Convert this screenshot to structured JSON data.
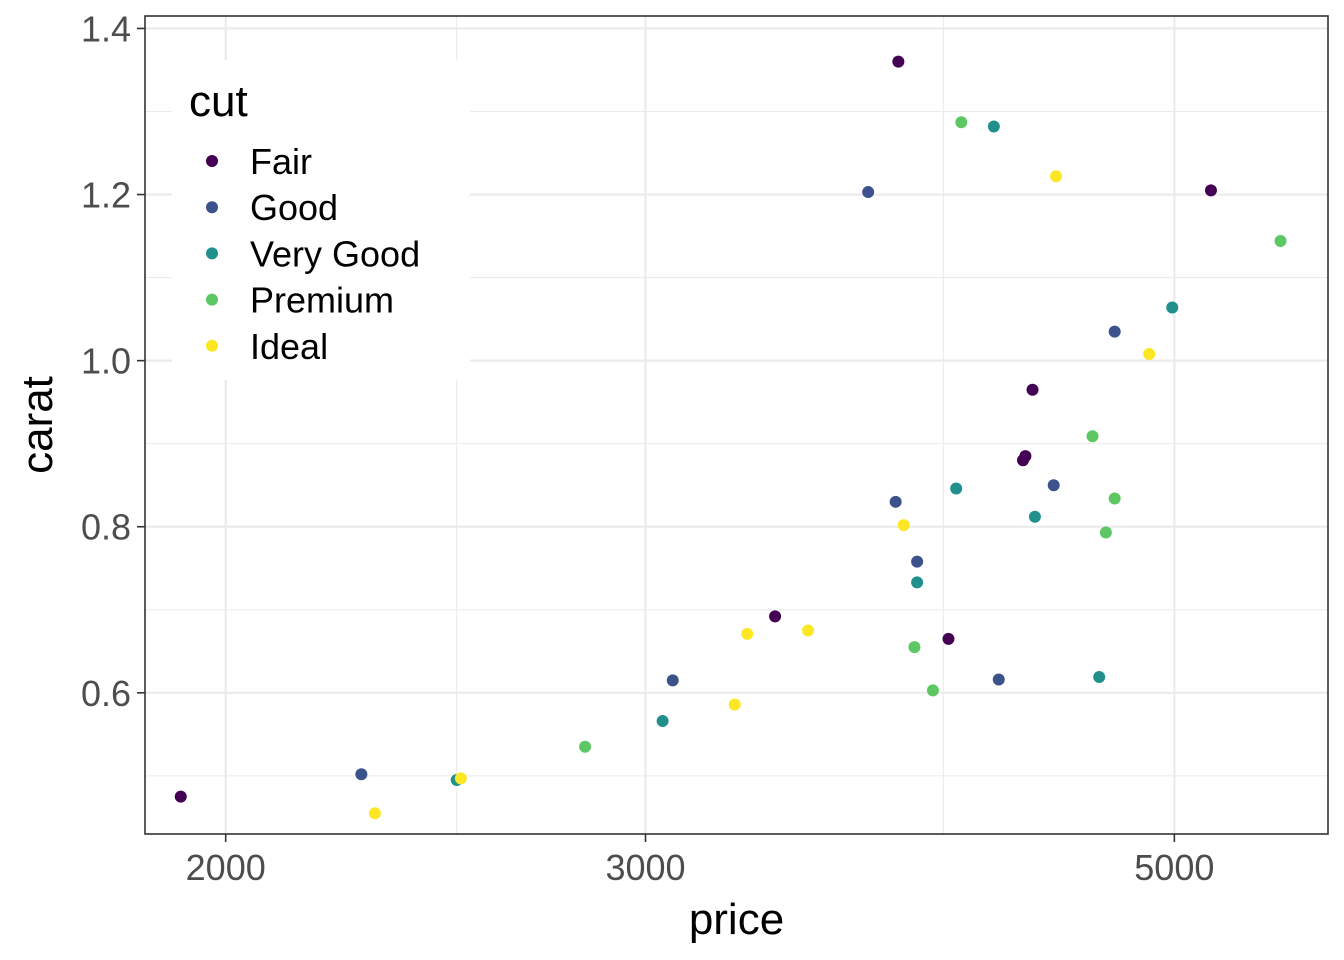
{
  "chart_data": {
    "type": "scatter",
    "xlabel": "price",
    "ylabel": "carat",
    "x_scale": "log10",
    "xlim": [
      1850,
      5800
    ],
    "ylim": [
      0.43,
      1.415
    ],
    "x_ticks": [
      2000,
      3000,
      5000
    ],
    "x_tick_labels": [
      "2000",
      "3000",
      "5000"
    ],
    "x_minor_ticks": [
      2500,
      4000
    ],
    "y_ticks": [
      0.6,
      0.8,
      1.0,
      1.2,
      1.4
    ],
    "y_tick_labels": [
      "0.6",
      "0.8",
      "1.0",
      "1.2",
      "1.4"
    ],
    "y_minor_ticks": [
      0.5,
      0.7,
      0.9,
      1.1,
      1.3
    ],
    "grid": true,
    "legend": {
      "title": "cut",
      "placement": "top-left"
    },
    "series": [
      {
        "name": "Fair",
        "color": "#440154",
        "points": [
          {
            "x": 1915,
            "y": 0.475
          },
          {
            "x": 3400,
            "y": 0.692
          },
          {
            "x": 3830,
            "y": 1.36
          },
          {
            "x": 4020,
            "y": 0.665
          },
          {
            "x": 4320,
            "y": 0.88
          },
          {
            "x": 4330,
            "y": 0.885
          },
          {
            "x": 4360,
            "y": 0.965
          },
          {
            "x": 5180,
            "y": 1.205
          }
        ]
      },
      {
        "name": "Good",
        "color": "#3b528b",
        "points": [
          {
            "x": 2280,
            "y": 0.502
          },
          {
            "x": 3080,
            "y": 0.615
          },
          {
            "x": 3720,
            "y": 1.203
          },
          {
            "x": 3820,
            "y": 0.83
          },
          {
            "x": 3900,
            "y": 0.758
          },
          {
            "x": 4220,
            "y": 0.616
          },
          {
            "x": 4450,
            "y": 0.85
          },
          {
            "x": 4720,
            "y": 1.035
          }
        ]
      },
      {
        "name": "Very Good",
        "color": "#21908c",
        "points": [
          {
            "x": 2500,
            "y": 0.495
          },
          {
            "x": 3050,
            "y": 0.566
          },
          {
            "x": 3900,
            "y": 0.733
          },
          {
            "x": 4050,
            "y": 0.846
          },
          {
            "x": 4200,
            "y": 1.282
          },
          {
            "x": 4370,
            "y": 0.812
          },
          {
            "x": 4650,
            "y": 0.619
          },
          {
            "x": 4990,
            "y": 1.064
          }
        ]
      },
      {
        "name": "Premium",
        "color": "#5dc863",
        "points": [
          {
            "x": 2830,
            "y": 0.535
          },
          {
            "x": 3890,
            "y": 0.655
          },
          {
            "x": 3960,
            "y": 0.603
          },
          {
            "x": 4070,
            "y": 1.287
          },
          {
            "x": 4620,
            "y": 0.909
          },
          {
            "x": 4680,
            "y": 0.793
          },
          {
            "x": 4720,
            "y": 0.834
          },
          {
            "x": 5540,
            "y": 1.144
          }
        ]
      },
      {
        "name": "Ideal",
        "color": "#fde725",
        "points": [
          {
            "x": 2310,
            "y": 0.455
          },
          {
            "x": 2510,
            "y": 0.497
          },
          {
            "x": 3270,
            "y": 0.586
          },
          {
            "x": 3310,
            "y": 0.671
          },
          {
            "x": 3510,
            "y": 0.675
          },
          {
            "x": 3850,
            "y": 0.802
          },
          {
            "x": 4460,
            "y": 1.222
          },
          {
            "x": 4880,
            "y": 1.008
          }
        ]
      }
    ]
  }
}
